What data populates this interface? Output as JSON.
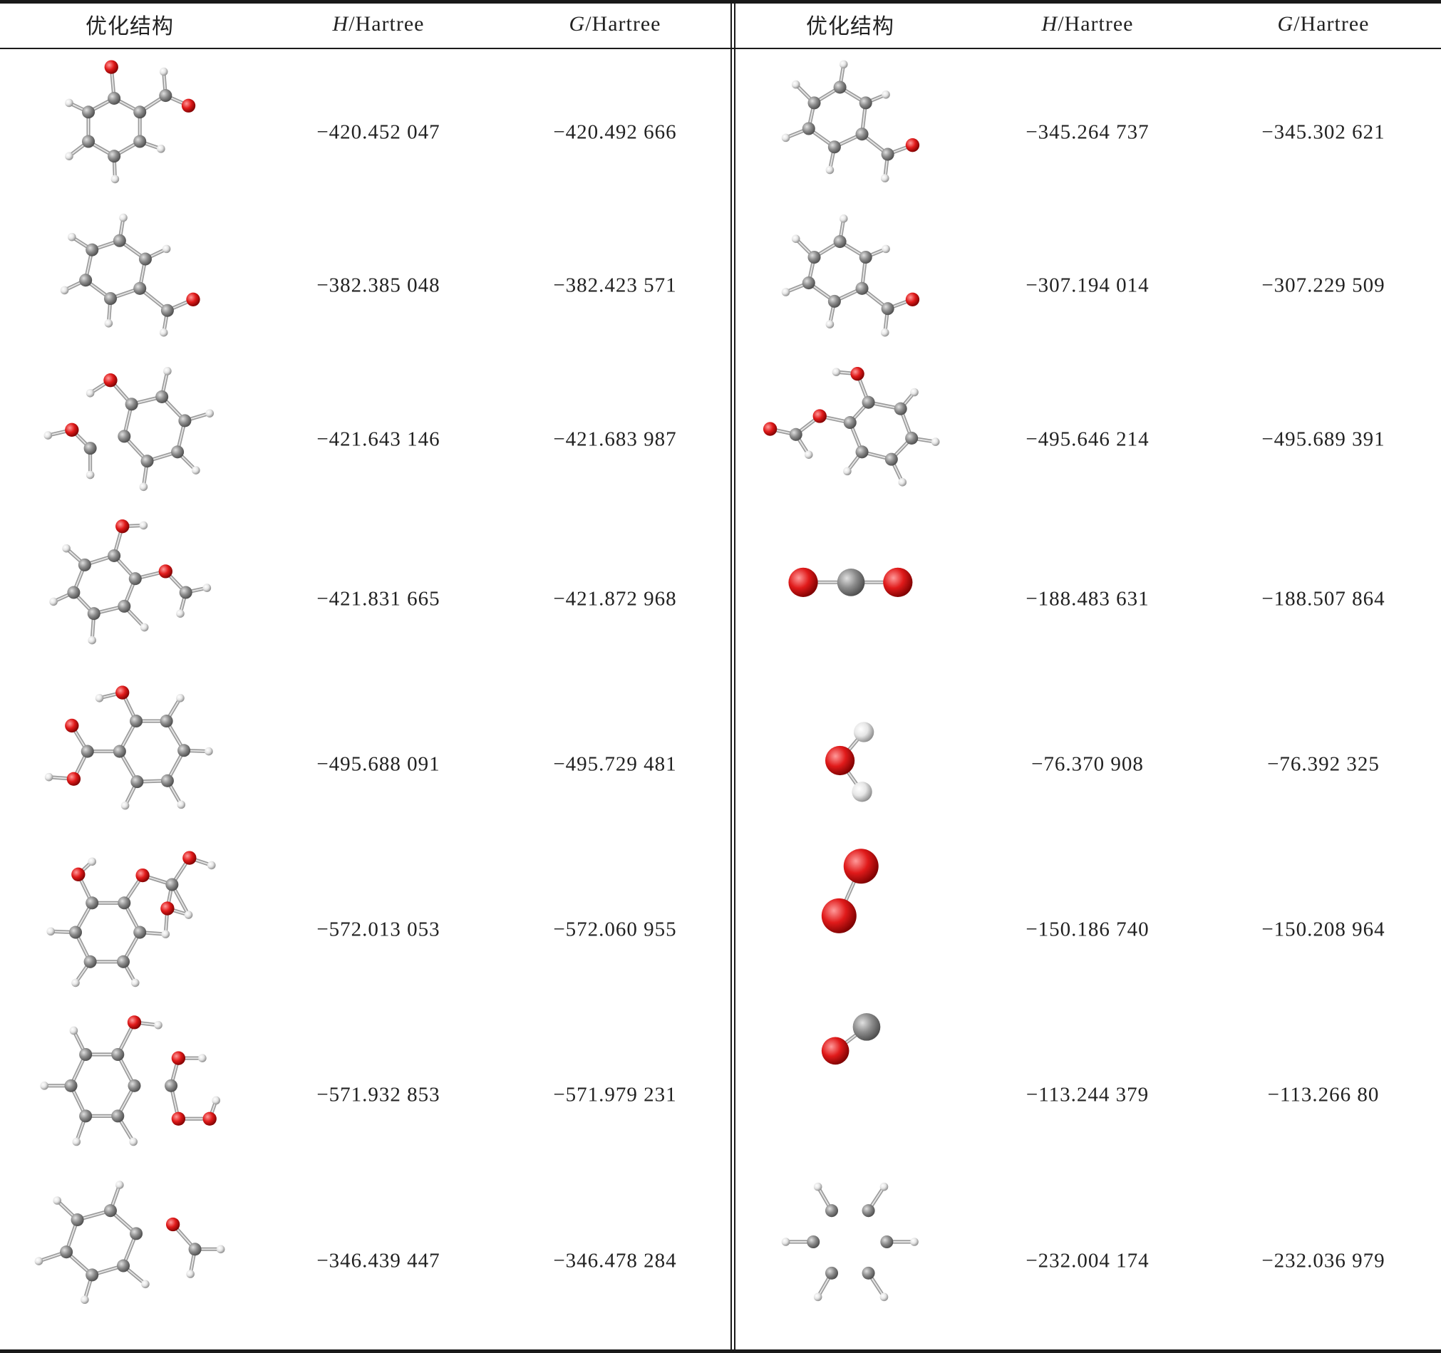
{
  "header": {
    "structure": "优化结构",
    "h_var": "H",
    "g_var": "G",
    "unit": "/Hartree"
  },
  "left_rows": [
    {
      "H": "−420.452 047",
      "G": "−420.492 666"
    },
    {
      "H": "−382.385 048",
      "G": "−382.423 571"
    },
    {
      "H": "−421.643 146",
      "G": "−421.683 987"
    },
    {
      "H": "−421.831 665",
      "G": "−421.872 968"
    },
    {
      "H": "−495.688 091",
      "G": "−495.729 481"
    },
    {
      "H": "−572.013 053",
      "G": "−572.060 955"
    },
    {
      "H": "−571.932 853",
      "G": "−571.979 231"
    },
    {
      "H": "−346.439 447",
      "G": "−346.478 284"
    }
  ],
  "right_rows": [
    {
      "H": "−345.264 737",
      "G": "−345.302 621"
    },
    {
      "H": "−307.194 014",
      "G": "−307.229 509"
    },
    {
      "H": "−495.646 214",
      "G": "−495.689 391"
    },
    {
      "H": "−188.483 631",
      "G": "−188.507 864"
    },
    {
      "H": "−76.370 908",
      "G": "−76.392 325"
    },
    {
      "H": "−150.186 740",
      "G": "−150.208 964"
    },
    {
      "H": "−113.244 379",
      "G": "−113.266 80"
    },
    {
      "H": "−232.004 174",
      "G": "−232.036 979"
    }
  ],
  "colors": {
    "oxygen": "#e01a1a",
    "carbon": "#8c8c8c",
    "hydrogen": "#e6e6e6",
    "rule": "#1a1a1a"
  }
}
